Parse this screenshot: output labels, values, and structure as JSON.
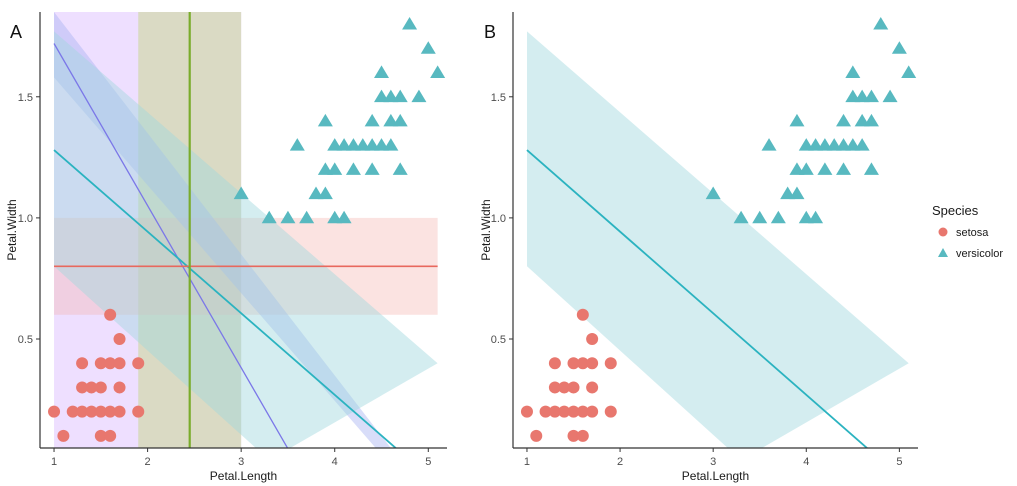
{
  "chart_data": [
    {
      "panel": "A",
      "type": "scatter",
      "xlabel": "Petal.Length",
      "ylabel": "Petal.Width",
      "xlim": [
        0.85,
        5.2
      ],
      "ylim": [
        0.05,
        1.85
      ],
      "xticks": [
        1,
        2,
        3,
        4,
        5
      ],
      "yticks": [
        0.5,
        1.0,
        1.5
      ],
      "ytick_labels": [
        "0.5",
        "1.0",
        "1.5"
      ],
      "grid": false,
      "bands": [
        {
          "name": "vertical-purple-band",
          "orient": "vertical",
          "from": 1.0,
          "to": 3.0,
          "color": "#d9b8ff",
          "opacity": 0.45
        },
        {
          "name": "vertical-green-band",
          "orient": "vertical",
          "from": 1.9,
          "to": 3.0,
          "color": "#c5d68a",
          "opacity": 0.5
        },
        {
          "name": "horizontal-red-band",
          "orient": "horizontal",
          "from": 0.6,
          "to": 1.0,
          "xfrom": 1.0,
          "xto": 5.1,
          "color": "#f4b6b0",
          "opacity": 0.38
        }
      ],
      "ribbons": [
        {
          "name": "steep-blue-ribbon",
          "upper": [
            [
              1.0,
              1.85
            ],
            [
              5.1,
              -0.2
            ]
          ],
          "lower": [
            [
              1.0,
              1.58
            ],
            [
              4.55,
              0.0
            ]
          ],
          "color": "#a8b4f2",
          "opacity": 0.45
        },
        {
          "name": "teal-ribbon",
          "upper": [
            [
              1.0,
              1.77
            ],
            [
              5.1,
              0.4
            ]
          ],
          "lower": [
            [
              1.0,
              0.8
            ],
            [
              3.3,
              0.0
            ]
          ],
          "color": "#9fd7de",
          "opacity": 0.45
        }
      ],
      "lines": [
        {
          "name": "steep-purple-line",
          "x": [
            1.0,
            3.57
          ],
          "y": [
            1.72,
            0.0
          ],
          "color": "#7b77e8",
          "width": 1.3
        },
        {
          "name": "teal-regression-line",
          "x": [
            1.0,
            4.8
          ],
          "y": [
            1.28,
            0.0
          ],
          "color": "#2bb3c0",
          "width": 1.8
        },
        {
          "name": "red-horizontal-line",
          "x": [
            1.0,
            5.1
          ],
          "y": [
            0.8,
            0.8
          ],
          "color": "#e8685e",
          "width": 1.6
        },
        {
          "name": "green-vertical-line",
          "x": [
            2.45,
            2.45
          ],
          "y": [
            0.0,
            1.9
          ],
          "color": "#7aac2c",
          "width": 2.2
        }
      ]
    },
    {
      "panel": "B",
      "type": "scatter",
      "xlabel": "Petal.Length",
      "ylabel": "Petal.Width",
      "xlim": [
        0.85,
        5.2
      ],
      "ylim": [
        0.05,
        1.85
      ],
      "xticks": [
        1,
        2,
        3,
        4,
        5
      ],
      "yticks": [
        0.5,
        1.0,
        1.5
      ],
      "ytick_labels": [
        "0.5",
        "1.0",
        "1.5"
      ],
      "grid": false,
      "bands": [],
      "ribbons": [
        {
          "name": "teal-ribbon",
          "upper": [
            [
              1.0,
              1.77
            ],
            [
              5.1,
              0.4
            ]
          ],
          "lower": [
            [
              1.0,
              0.8
            ],
            [
              3.3,
              0.0
            ]
          ],
          "color": "#9fd7de",
          "opacity": 0.45
        }
      ],
      "lines": [
        {
          "name": "teal-regression-line",
          "x": [
            1.0,
            4.8
          ],
          "y": [
            1.28,
            0.0
          ],
          "color": "#2bb3c0",
          "width": 1.8
        }
      ]
    }
  ],
  "series": [
    {
      "name": "setosa",
      "marker": "circle",
      "color": "#e8776e",
      "points": [
        [
          1.0,
          0.2
        ],
        [
          1.1,
          0.1
        ],
        [
          1.2,
          0.2
        ],
        [
          1.3,
          0.2
        ],
        [
          1.3,
          0.3
        ],
        [
          1.3,
          0.4
        ],
        [
          1.4,
          0.2
        ],
        [
          1.4,
          0.3
        ],
        [
          1.5,
          0.1
        ],
        [
          1.5,
          0.2
        ],
        [
          1.5,
          0.3
        ],
        [
          1.5,
          0.4
        ],
        [
          1.6,
          0.1
        ],
        [
          1.6,
          0.2
        ],
        [
          1.6,
          0.4
        ],
        [
          1.6,
          0.6
        ],
        [
          1.7,
          0.2
        ],
        [
          1.7,
          0.3
        ],
        [
          1.7,
          0.4
        ],
        [
          1.7,
          0.5
        ],
        [
          1.9,
          0.2
        ],
        [
          1.9,
          0.4
        ]
      ]
    },
    {
      "name": "versicolor",
      "marker": "triangle",
      "color": "#58b9c0",
      "points": [
        [
          3.0,
          1.1
        ],
        [
          3.3,
          1.0
        ],
        [
          3.5,
          1.0
        ],
        [
          3.6,
          1.3
        ],
        [
          3.7,
          1.0
        ],
        [
          3.8,
          1.1
        ],
        [
          3.9,
          1.1
        ],
        [
          3.9,
          1.2
        ],
        [
          3.9,
          1.4
        ],
        [
          4.0,
          1.0
        ],
        [
          4.0,
          1.2
        ],
        [
          4.0,
          1.3
        ],
        [
          4.1,
          1.0
        ],
        [
          4.1,
          1.3
        ],
        [
          4.2,
          1.2
        ],
        [
          4.2,
          1.3
        ],
        [
          4.3,
          1.3
        ],
        [
          4.4,
          1.2
        ],
        [
          4.4,
          1.3
        ],
        [
          4.4,
          1.4
        ],
        [
          4.5,
          1.3
        ],
        [
          4.5,
          1.5
        ],
        [
          4.5,
          1.6
        ],
        [
          4.6,
          1.3
        ],
        [
          4.6,
          1.4
        ],
        [
          4.6,
          1.5
        ],
        [
          4.7,
          1.2
        ],
        [
          4.7,
          1.4
        ],
        [
          4.7,
          1.5
        ],
        [
          4.8,
          1.8
        ],
        [
          4.9,
          1.5
        ],
        [
          5.0,
          1.7
        ],
        [
          5.1,
          1.6
        ]
      ]
    }
  ],
  "legend": {
    "title": "Species",
    "position": "right",
    "entries": [
      "setosa",
      "versicolor"
    ]
  }
}
